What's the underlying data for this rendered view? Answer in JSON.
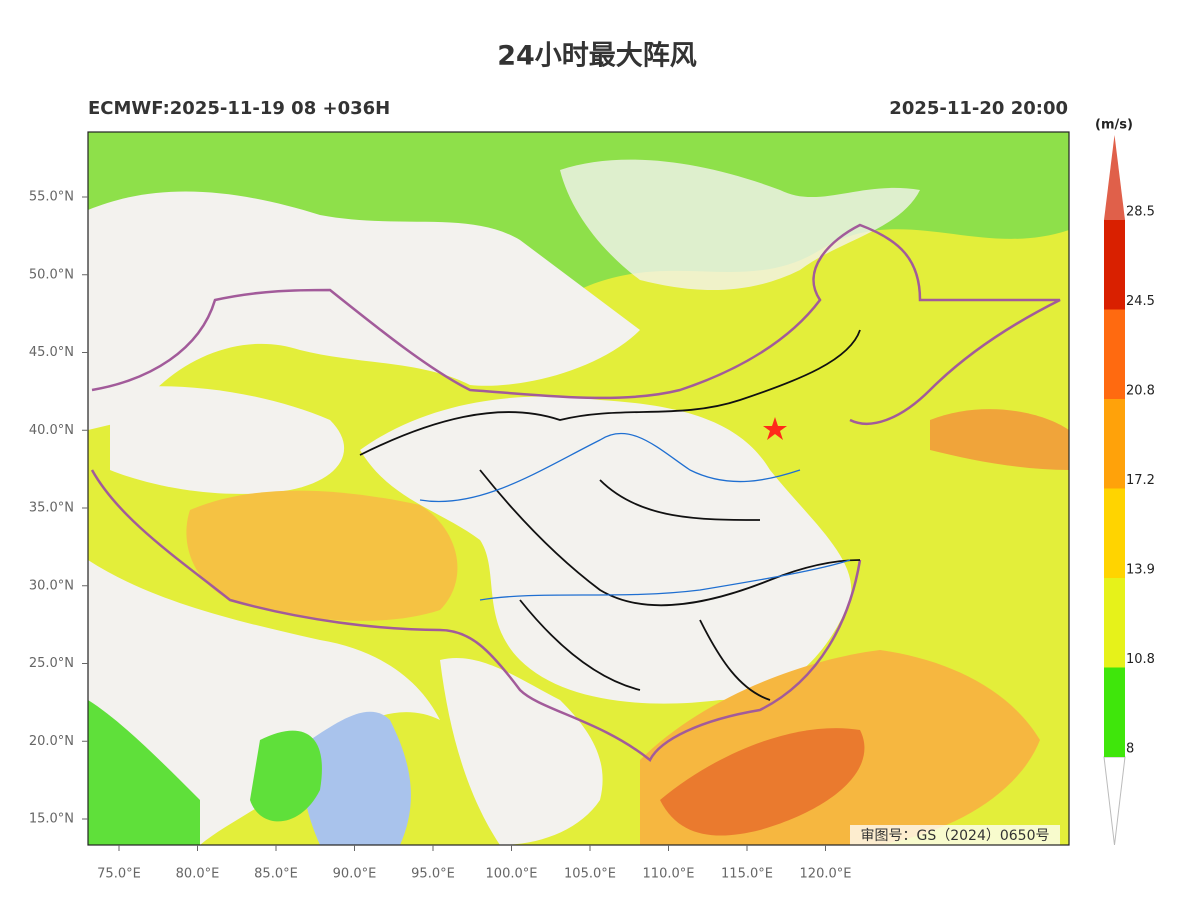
{
  "title": "24小时最大阵风",
  "model_run": "ECMWF:2025-11-19 08 +036H",
  "valid_time": "2025-11-20 20:00",
  "review_number": "审图号：GS（2024）0650号",
  "lat_labels": [
    "55.0°N",
    "50.0°N",
    "45.0°N",
    "40.0°N",
    "35.0°N",
    "30.0°N",
    "25.0°N",
    "20.0°N",
    "15.0°N"
  ],
  "lon_labels": [
    "75.0°E",
    "80.0°E",
    "85.0°E",
    "90.0°E",
    "95.0°E",
    "100.0°E",
    "105.0°E",
    "110.0°E",
    "115.0°E",
    "120.0°E"
  ],
  "colorbar": {
    "unit": "(m/s)",
    "levels": [
      8,
      10.8,
      13.9,
      17.2,
      20.8,
      24.5,
      28.5
    ],
    "colors": [
      "#3fe60b",
      "#e6f21a",
      "#ffd400",
      "#ffa20a",
      "#ff6a10",
      "#d92000",
      "#e0604a"
    ]
  }
}
